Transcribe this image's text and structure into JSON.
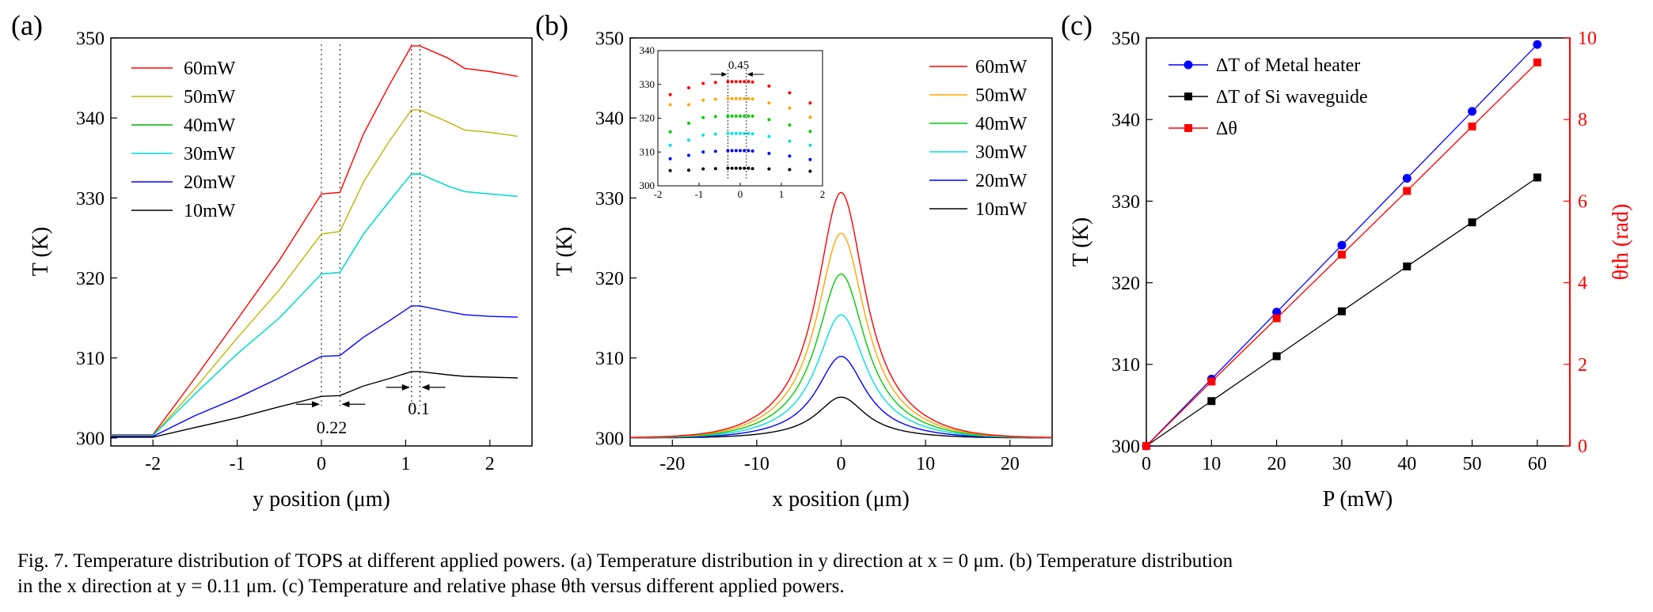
{
  "panels": [
    {
      "label": "(a)"
    },
    {
      "label": "(b)"
    },
    {
      "label": "(c)"
    }
  ],
  "caption": {
    "line1": "Fig. 7.  Temperature distribution of TOPS at different applied powers. (a) Temperature distribution in y direction at x = 0 μm. (b) Temperature distribution",
    "line2": "in the x direction at y = 0.11 μm. (c) Temperature and relative phase θth versus different applied powers."
  },
  "chart_data": [
    {
      "type": "line",
      "panel": "(a)",
      "xlabel": "y position (μm)",
      "ylabel": "T (K)",
      "xlim": [
        -2.5,
        2.5
      ],
      "ylim": [
        299,
        350
      ],
      "xticks": [
        -2,
        -1,
        0,
        1,
        2
      ],
      "yticks": [
        300,
        310,
        320,
        330,
        340,
        350
      ],
      "legend_position": "top-left",
      "annotations": [
        {
          "text": "0.22",
          "x_range": [
            0,
            0.22
          ]
        },
        {
          "text": "0.1",
          "x_range": [
            1.07,
            1.17
          ]
        }
      ],
      "x": [
        -2.5,
        -2.0,
        -1.5,
        -1.0,
        -0.5,
        0.0,
        0.22,
        0.5,
        0.8,
        1.07,
        1.17,
        1.5,
        1.7,
        2.0,
        2.33
      ],
      "series": [
        {
          "name": "60mW",
          "color": "#ff0000",
          "values": [
            300.4,
            300.4,
            307.5,
            314.8,
            322.2,
            330.5,
            330.7,
            338.0,
            344.0,
            349.0,
            349.0,
            347.5,
            346.2,
            345.8,
            345.2
          ]
        },
        {
          "name": "50mW",
          "color": "#b8b800",
          "values": [
            300.3,
            300.3,
            306.2,
            312.5,
            318.5,
            325.5,
            325.8,
            332.0,
            337.0,
            341.0,
            341.0,
            339.5,
            338.5,
            338.2,
            337.7
          ]
        },
        {
          "name": "40mW",
          "color": "#00b000",
          "values": [
            300.3,
            300.3,
            305.5,
            310.5,
            315.0,
            320.5,
            320.7,
            325.5,
            329.5,
            333.0,
            333.0,
            331.5,
            330.8,
            330.5,
            330.2
          ]
        },
        {
          "name": "30mW",
          "color": "#00e0e0",
          "values": [
            300.3,
            300.3,
            305.5,
            310.5,
            315.0,
            320.5,
            320.7,
            325.5,
            329.5,
            333.0,
            333.0,
            331.5,
            330.8,
            330.5,
            330.2
          ]
        },
        {
          "name": "20mW",
          "color": "#0000ff",
          "values": [
            300.2,
            300.2,
            302.8,
            305.0,
            307.5,
            310.2,
            310.3,
            312.6,
            314.6,
            316.5,
            316.5,
            315.8,
            315.4,
            315.2,
            315.1
          ]
        },
        {
          "name": "10mW",
          "color": "#000000",
          "values": [
            300.1,
            300.1,
            301.3,
            302.5,
            303.9,
            305.2,
            305.3,
            306.5,
            307.4,
            308.3,
            308.3,
            307.9,
            307.7,
            307.6,
            307.5
          ]
        }
      ]
    },
    {
      "type": "line",
      "panel": "(b)",
      "xlabel": "x position (μm)",
      "ylabel": "T (K)",
      "xlim": [
        -25,
        25
      ],
      "ylim": [
        299,
        350
      ],
      "xticks": [
        -20,
        -10,
        0,
        10,
        20
      ],
      "yticks": [
        300,
        310,
        320,
        330,
        340,
        350
      ],
      "legend_position": "top-right",
      "profile": "lorentzian",
      "half_width_um": 3.5,
      "series": [
        {
          "name": "60mW",
          "color": "#ff0000",
          "peak": 330.7
        },
        {
          "name": "50mW",
          "color": "#ffa500",
          "peak": 325.6
        },
        {
          "name": "40mW",
          "color": "#00cc00",
          "peak": 320.5
        },
        {
          "name": "30mW",
          "color": "#00e0e0",
          "peak": 315.4
        },
        {
          "name": "20mW",
          "color": "#0000ff",
          "peak": 310.2
        },
        {
          "name": "10mW",
          "color": "#000000",
          "peak": 305.1
        }
      ],
      "inset": {
        "type": "scatter",
        "xlim": [
          -2,
          2
        ],
        "ylim": [
          300,
          340
        ],
        "xticks": [
          -2,
          -1,
          0,
          1,
          2
        ],
        "yticks": [
          300,
          310,
          320,
          330,
          340
        ],
        "annotation": "0.45",
        "x": [
          -1.7,
          -1.25,
          -0.9,
          -0.6,
          -0.3,
          -0.2,
          -0.1,
          0.0,
          0.1,
          0.2,
          0.3,
          0.7,
          1.2,
          1.7
        ],
        "series": [
          {
            "color": "#ff0000",
            "values": [
              327,
              329,
              330.3,
              330.6,
              330.8,
              330.8,
              330.8,
              330.8,
              330.8,
              330.8,
              330.7,
              329.5,
              327.5,
              324.5
            ]
          },
          {
            "color": "#ffa500",
            "values": [
              324,
              324,
              325.3,
              325.6,
              325.8,
              325.8,
              325.8,
              325.8,
              325.8,
              325.8,
              325.7,
              324.5,
              323,
              320.3
            ]
          },
          {
            "color": "#00cc00",
            "values": [
              316,
              318.5,
              320.2,
              320.5,
              320.6,
              320.6,
              320.6,
              320.6,
              320.6,
              320.6,
              320.6,
              319.6,
              318,
              316.1
            ]
          },
          {
            "color": "#00e0e0",
            "values": [
              312,
              313.5,
              315,
              315.3,
              315.5,
              315.5,
              315.5,
              315.5,
              315.5,
              315.5,
              315.4,
              314.6,
              313.2,
              312
            ]
          },
          {
            "color": "#0000ff",
            "values": [
              308,
              309,
              310,
              310.2,
              310.4,
              310.4,
              310.4,
              310.4,
              310.4,
              310.4,
              310.3,
              309.6,
              308.8,
              307.8
            ]
          },
          {
            "color": "#000000",
            "values": [
              304.5,
              304.6,
              305,
              305.1,
              305.2,
              305.2,
              305.2,
              305.2,
              305.2,
              305.2,
              305.1,
              305,
              304.8,
              304.3
            ]
          }
        ]
      }
    },
    {
      "type": "line",
      "panel": "(c)",
      "xlabel": "P (mW)",
      "ylabel": "T (K)",
      "y2label": "θth (rad)",
      "xlim": [
        0,
        65
      ],
      "ylim": [
        300,
        350
      ],
      "y2lim": [
        0,
        10
      ],
      "xticks": [
        0,
        10,
        20,
        30,
        40,
        50,
        60
      ],
      "yticks": [
        300,
        310,
        320,
        330,
        340,
        350
      ],
      "y2ticks": [
        0,
        2,
        4,
        6,
        8,
        10
      ],
      "legend_position": "top-left",
      "x": [
        0,
        10,
        20,
        30,
        40,
        50,
        60
      ],
      "series": [
        {
          "name": "ΔT of Metal heater",
          "color": "#0000ff",
          "marker": "circle",
          "axis": "left",
          "values": [
            300,
            308.2,
            316.4,
            324.6,
            332.8,
            341.0,
            349.2
          ]
        },
        {
          "name": "ΔT of Si waveguide",
          "color": "#000000",
          "marker": "square",
          "axis": "left",
          "values": [
            300,
            305.5,
            311.0,
            316.5,
            322.0,
            327.4,
            332.9
          ]
        },
        {
          "name": "Δθ",
          "color": "#ff0000",
          "marker": "square",
          "axis": "right",
          "values": [
            0,
            1.58,
            3.13,
            4.69,
            6.25,
            7.83,
            9.4
          ]
        }
      ]
    }
  ]
}
